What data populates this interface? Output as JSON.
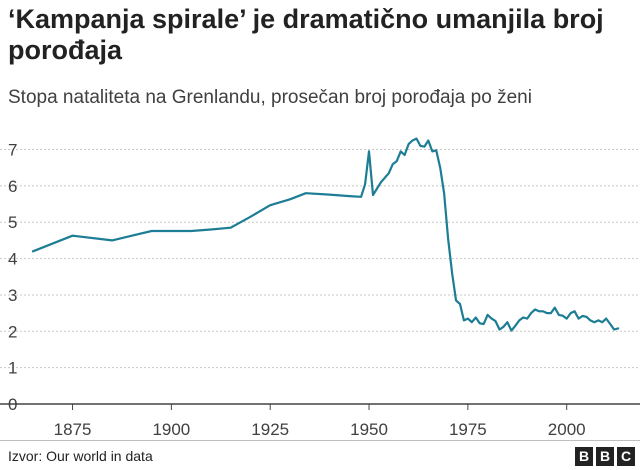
{
  "chart_data": {
    "type": "line",
    "title": "‘Kampanja spirale’ je dramatično umanjila broj porođaja",
    "subtitle": "Stopa nataliteta na Grenlandu, prosečan broj porođaja po ženi",
    "xlabel": "",
    "ylabel": "",
    "xlim": [
      1865,
      2015
    ],
    "ylim": [
      0,
      7.4
    ],
    "x_ticks": [
      "1875",
      "1900",
      "1925",
      "1950",
      "1975",
      "2000"
    ],
    "y_ticks": [
      "0",
      "1",
      "2",
      "3",
      "4",
      "5",
      "6",
      "7"
    ],
    "grid": "horizontal dotted",
    "color": "#1c7d94",
    "series": [
      {
        "name": "",
        "x": [
          1865,
          1875,
          1885,
          1890,
          1895,
          1900,
          1905,
          1910,
          1915,
          1920,
          1925,
          1930,
          1934,
          1940,
          1945,
          1948,
          1949,
          1950,
          1951,
          1953,
          1955,
          1956,
          1957,
          1958,
          1959,
          1960,
          1961,
          1962,
          1963,
          1964,
          1965,
          1966,
          1967,
          1968,
          1969,
          1970,
          1971,
          1972,
          1973,
          1974,
          1975,
          1976,
          1977,
          1978,
          1979,
          1980,
          1981,
          1982,
          1983,
          1984,
          1985,
          1986,
          1987,
          1988,
          1989,
          1990,
          1991,
          1992,
          1993,
          1994,
          1995,
          1996,
          1997,
          1998,
          1999,
          2000,
          2001,
          2002,
          2003,
          2004,
          2005,
          2006,
          2007,
          2008,
          2009,
          2010,
          2011,
          2012,
          2013
        ],
        "y": [
          4.2,
          4.63,
          4.5,
          4.63,
          4.76,
          4.76,
          4.76,
          4.8,
          4.85,
          5.15,
          5.47,
          5.63,
          5.8,
          5.76,
          5.72,
          5.7,
          6.05,
          6.95,
          5.75,
          6.1,
          6.35,
          6.6,
          6.68,
          6.95,
          6.85,
          7.15,
          7.25,
          7.3,
          7.1,
          7.08,
          7.25,
          6.95,
          6.98,
          6.5,
          5.8,
          4.55,
          3.6,
          2.85,
          2.75,
          2.3,
          2.35,
          2.25,
          2.38,
          2.22,
          2.2,
          2.45,
          2.35,
          2.28,
          2.05,
          2.12,
          2.25,
          2.02,
          2.15,
          2.3,
          2.38,
          2.35,
          2.5,
          2.6,
          2.55,
          2.55,
          2.5,
          2.5,
          2.65,
          2.45,
          2.43,
          2.35,
          2.5,
          2.55,
          2.35,
          2.42,
          2.4,
          2.3,
          2.25,
          2.3,
          2.25,
          2.35,
          2.2,
          2.05,
          2.08
        ]
      }
    ]
  },
  "footer": {
    "source": "Izvor: Our world in data",
    "logo_letters": [
      "B",
      "B",
      "C"
    ]
  }
}
